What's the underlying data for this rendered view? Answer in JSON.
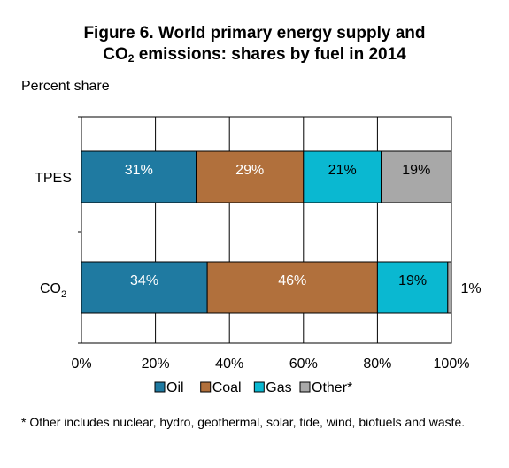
{
  "chart_data": {
    "type": "bar",
    "orientation": "horizontal",
    "stacked": true,
    "title_parts": [
      "Figure 6. World primary energy supply and",
      "CO",
      "2",
      " emissions: shares by fuel in 2014"
    ],
    "ylabel": "Percent share",
    "categories": [
      {
        "label": "TPES",
        "sub": ""
      },
      {
        "label": "CO",
        "sub": "2"
      }
    ],
    "series": [
      {
        "name": "Oil",
        "color": "#1f7aa1",
        "values": [
          31,
          34
        ],
        "labels": [
          "31%",
          "34%"
        ]
      },
      {
        "name": "Coal",
        "color": "#b1703c",
        "values": [
          29,
          46
        ],
        "labels": [
          "29%",
          "46%"
        ]
      },
      {
        "name": "Gas",
        "color": "#0ab8d1",
        "values": [
          21,
          19
        ],
        "labels": [
          "21%",
          "19%"
        ]
      },
      {
        "name": "Other*",
        "color": "#a8a8a8",
        "values": [
          19,
          1
        ],
        "labels": [
          "19%",
          "1%"
        ]
      }
    ],
    "xlim": [
      0,
      100
    ],
    "xticks": [
      "0%",
      "20%",
      "40%",
      "60%",
      "80%",
      "100%"
    ],
    "grid": "vertical",
    "legend": "bottom"
  },
  "footnote": "* Other includes nuclear, hydro, geothermal, solar, tide, wind, biofuels and waste."
}
